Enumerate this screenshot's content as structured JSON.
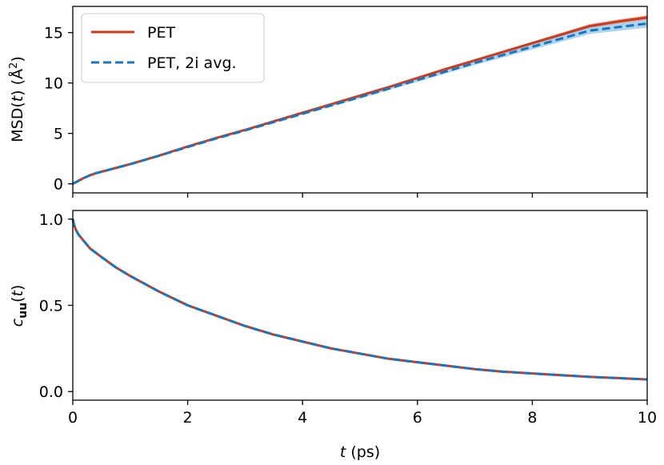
{
  "colors": {
    "pet": "#d03a1c",
    "pet_2i": "#1776c0",
    "pet_2i_band": "#6ab0e0"
  },
  "legend": {
    "placement": "upper-left",
    "entries": [
      "PET",
      "PET, 2i avg."
    ]
  },
  "chart_data": [
    {
      "type": "line",
      "panel": "top",
      "ylabel_main": "MSD(",
      "ylabel_var": "t",
      "ylabel_close": ") (Å",
      "ylabel_sup": "2",
      "ylabel_end": ")",
      "xlim": [
        0,
        10
      ],
      "ylim": [
        -0.9,
        17.6
      ],
      "xticks": [
        0,
        2,
        4,
        6,
        8,
        10
      ],
      "yticks": [
        0,
        5,
        10,
        15
      ],
      "ytick_labels": [
        "0",
        "5",
        "10",
        "15"
      ],
      "grid": false,
      "series": [
        {
          "name": "PET",
          "style": "solid",
          "x": [
            0,
            0.1,
            0.2,
            0.3,
            0.4,
            0.5,
            0.6,
            0.8,
            1,
            1.5,
            2,
            2.5,
            3,
            3.5,
            4,
            4.5,
            5,
            5.5,
            6,
            6.5,
            7,
            7.5,
            8,
            8.5,
            9,
            9.5,
            10
          ],
          "y": [
            0,
            0.3,
            0.6,
            0.85,
            1.05,
            1.2,
            1.35,
            1.65,
            1.95,
            2.8,
            3.7,
            4.55,
            5.35,
            6.2,
            7.05,
            7.9,
            8.75,
            9.6,
            10.5,
            11.4,
            12.25,
            13.1,
            13.95,
            14.8,
            15.65,
            16.1,
            16.5
          ],
          "band_halfwidth": [
            0,
            0,
            0,
            0,
            0,
            0,
            0,
            0,
            0,
            0,
            0,
            0,
            0,
            0,
            0.02,
            0.04,
            0.05,
            0.07,
            0.08,
            0.1,
            0.11,
            0.13,
            0.15,
            0.17,
            0.19,
            0.2,
            0.22
          ]
        },
        {
          "name": "PET, 2i avg.",
          "style": "dashed",
          "x": [
            0,
            0.1,
            0.2,
            0.3,
            0.4,
            0.5,
            0.6,
            0.8,
            1,
            1.5,
            2,
            2.5,
            3,
            3.5,
            4,
            4.5,
            5,
            5.5,
            6,
            6.5,
            7,
            7.5,
            8,
            8.5,
            9,
            9.5,
            10
          ],
          "y": [
            0,
            0.3,
            0.6,
            0.85,
            1.05,
            1.2,
            1.35,
            1.65,
            1.95,
            2.78,
            3.65,
            4.5,
            5.3,
            6.12,
            6.95,
            7.78,
            8.6,
            9.45,
            10.3,
            11.15,
            12,
            12.8,
            13.6,
            14.4,
            15.2,
            15.55,
            15.9
          ],
          "band_halfwidth": [
            0,
            0,
            0,
            0,
            0,
            0,
            0,
            0,
            0,
            0,
            0.02,
            0.04,
            0.06,
            0.08,
            0.1,
            0.12,
            0.14,
            0.16,
            0.18,
            0.2,
            0.22,
            0.25,
            0.28,
            0.31,
            0.34,
            0.37,
            0.4
          ]
        }
      ]
    },
    {
      "type": "line",
      "panel": "bottom",
      "ylabel_c": "c",
      "ylabel_sub": "uu",
      "ylabel_paren_open": "(",
      "ylabel_var": "t",
      "ylabel_paren_close": ")",
      "xlabel_var": "t",
      "xlabel_unit": " (ps)",
      "xlim": [
        0,
        10
      ],
      "ylim": [
        -0.05,
        1.05
      ],
      "xticks": [
        0,
        2,
        4,
        6,
        8,
        10
      ],
      "xtick_labels": [
        "0",
        "2",
        "4",
        "6",
        "8",
        "10"
      ],
      "yticks": [
        0,
        0.5,
        1
      ],
      "ytick_labels": [
        "0.0",
        "0.5",
        "1.0"
      ],
      "grid": false,
      "series": [
        {
          "name": "PET",
          "style": "solid",
          "x": [
            0,
            0.02,
            0.05,
            0.1,
            0.2,
            0.3,
            0.5,
            0.75,
            1,
            1.5,
            2,
            2.5,
            3,
            3.5,
            4,
            4.5,
            5,
            5.5,
            6,
            6.5,
            7,
            7.5,
            8,
            8.5,
            9,
            9.5,
            10
          ],
          "y": [
            1.0,
            0.97,
            0.94,
            0.91,
            0.87,
            0.83,
            0.78,
            0.72,
            0.67,
            0.58,
            0.5,
            0.44,
            0.38,
            0.33,
            0.29,
            0.25,
            0.22,
            0.19,
            0.17,
            0.15,
            0.13,
            0.115,
            0.105,
            0.095,
            0.085,
            0.078,
            0.07
          ]
        },
        {
          "name": "PET, 2i avg.",
          "style": "dashed",
          "x": [
            0,
            0.02,
            0.05,
            0.1,
            0.2,
            0.3,
            0.5,
            0.75,
            1,
            1.5,
            2,
            2.5,
            3,
            3.5,
            4,
            4.5,
            5,
            5.5,
            6,
            6.5,
            7,
            7.5,
            8,
            8.5,
            9,
            9.5,
            10
          ],
          "y": [
            1.0,
            0.97,
            0.94,
            0.91,
            0.87,
            0.83,
            0.78,
            0.72,
            0.67,
            0.58,
            0.5,
            0.44,
            0.38,
            0.33,
            0.29,
            0.25,
            0.22,
            0.19,
            0.17,
            0.15,
            0.13,
            0.115,
            0.105,
            0.095,
            0.085,
            0.078,
            0.07
          ]
        }
      ]
    }
  ]
}
